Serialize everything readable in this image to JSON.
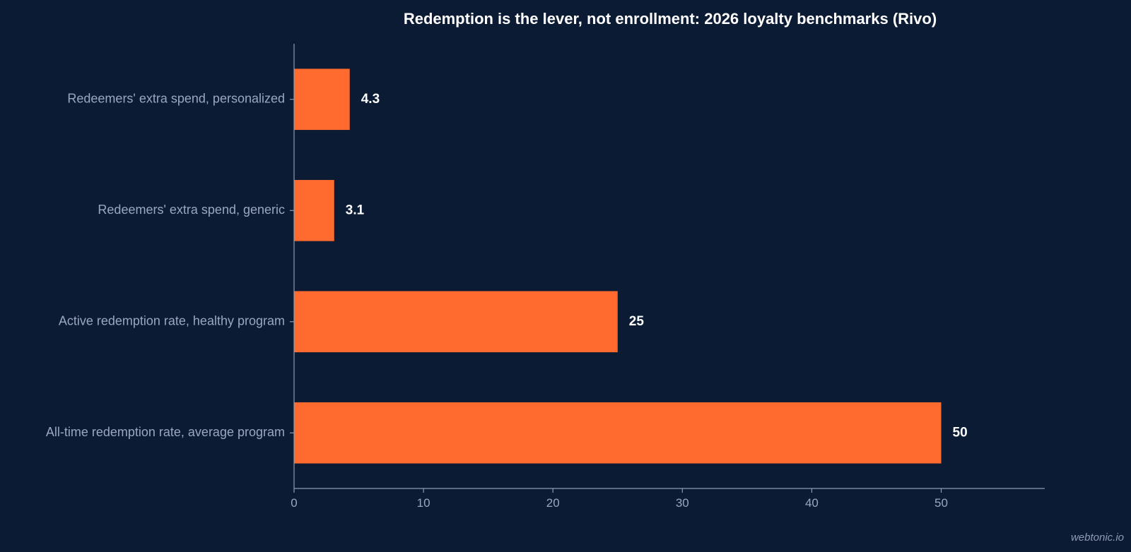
{
  "chart_data": {
    "type": "bar",
    "orientation": "horizontal",
    "title": "Redemption is the lever, not enrollment: 2026 loyalty benchmarks (Rivo)",
    "categories": [
      "Redeemers' extra spend, personalized",
      "Redeemers' extra spend, generic",
      "Active redemption rate, healthy program",
      "All-time redemption rate, average program"
    ],
    "values": [
      4.3,
      3.1,
      25,
      50
    ],
    "value_labels": [
      "4.3",
      "3.1",
      "25",
      "50"
    ],
    "xlabel": "",
    "ylabel": "",
    "xlim": [
      0,
      58
    ],
    "xticks": [
      0,
      10,
      20,
      30,
      40,
      50
    ],
    "grid": false,
    "legend": "none",
    "colors": {
      "background": "#0b1b34",
      "bar": "#ff6b2f",
      "axis": "#8e9bb0",
      "label": "#9aa8bd",
      "title": "#ffffff"
    }
  },
  "watermark": "webtonic.io"
}
